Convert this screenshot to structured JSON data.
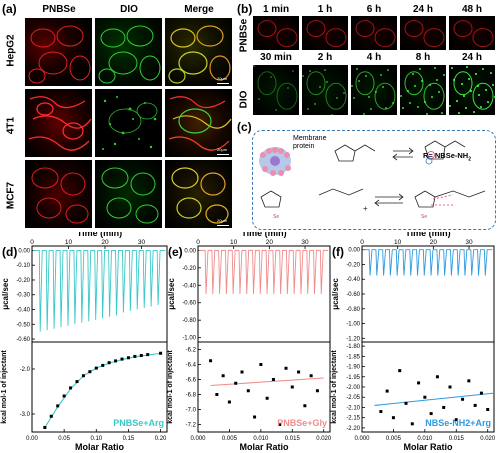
{
  "panel_a": {
    "label": "(a)",
    "columns": [
      "PNBSe",
      "DIO",
      "Merge"
    ],
    "rows": [
      "HepG2",
      "4T1",
      "MCF7"
    ],
    "scale_text": "20μm"
  },
  "panel_b": {
    "label": "(b)",
    "row1_label": "PNBSe",
    "row1_times": [
      "1 min",
      "1 h",
      "6 h",
      "24 h",
      "48 h"
    ],
    "row2_label": "DIO",
    "row2_times": [
      "30 min",
      "2 h",
      "4 h",
      "8 h",
      "24 h"
    ]
  },
  "panel_c": {
    "label": "(c)",
    "membrane_text": "Membrane protein",
    "r_definition": "R= NBSe-NH",
    "r_subscript": "2"
  },
  "colors": {
    "cyan": "#3cc8c8",
    "pink": "#f08c8c",
    "blue": "#2e9ae0",
    "dash_border": "#3b78b8"
  },
  "chart_data": [
    {
      "label": "(d)",
      "type": "line",
      "top": {
        "xlabel": "Time (min)",
        "ylabel": "μcal/sec",
        "xticks": [
          0,
          10,
          20,
          30
        ],
        "xlim": [
          0,
          37
        ],
        "yticks": [
          "0.00",
          "-0.10",
          "-0.20",
          "-0.30",
          "-0.40",
          "-0.50",
          "-0.60"
        ],
        "ylim": [
          -0.62,
          0.03
        ],
        "injections": 18,
        "peak_depths": [
          -0.55,
          -0.54,
          -0.53,
          -0.52,
          -0.51,
          -0.5,
          -0.49,
          -0.48,
          -0.47,
          -0.46,
          -0.45,
          -0.44,
          -0.42,
          -0.41,
          -0.4,
          -0.39,
          -0.38,
          -0.37
        ]
      },
      "bottom": {
        "xlabel": "Molar Ratio",
        "ylabel": "kcal mol-1 of injectant",
        "xticks": [
          "0.00",
          "0.05",
          "0.10",
          "0.15",
          "0.20"
        ],
        "xlim": [
          0,
          0.21
        ],
        "yticks": [
          "-2.0",
          "-3.0"
        ],
        "ylim": [
          -3.4,
          -1.4
        ],
        "points_x": [
          0.02,
          0.03,
          0.04,
          0.05,
          0.06,
          0.07,
          0.08,
          0.09,
          0.1,
          0.11,
          0.12,
          0.13,
          0.14,
          0.15,
          0.16,
          0.17,
          0.18,
          0.2
        ],
        "points_y": [
          -3.3,
          -3.05,
          -2.82,
          -2.6,
          -2.42,
          -2.28,
          -2.15,
          -2.06,
          -1.98,
          -1.92,
          -1.86,
          -1.82,
          -1.78,
          -1.75,
          -1.72,
          -1.7,
          -1.68,
          -1.65
        ],
        "fit_x": [
          0.02,
          0.04,
          0.06,
          0.08,
          0.1,
          0.12,
          0.14,
          0.16,
          0.18,
          0.2
        ],
        "fit_y": [
          -3.3,
          -2.84,
          -2.44,
          -2.15,
          -1.98,
          -1.87,
          -1.79,
          -1.73,
          -1.69,
          -1.65
        ],
        "legend": "PNBSe+Arg"
      },
      "color_key": "cyan"
    },
    {
      "label": "(e)",
      "type": "line",
      "top": {
        "xlabel": "Time (min)",
        "ylabel": "μcal/sec",
        "xticks": [
          0,
          10,
          20,
          30
        ],
        "xlim": [
          0,
          37
        ],
        "yticks": [
          "0.00",
          "-0.20",
          "-0.40",
          "-0.60",
          "-0.80",
          "-1.00"
        ],
        "ylim": [
          -1.05,
          0.05
        ],
        "injections": 18,
        "peak_depths": [
          -0.5,
          -0.5,
          -0.5,
          -0.5,
          -0.5,
          -0.5,
          -0.5,
          -0.5,
          -0.5,
          -0.5,
          -0.5,
          -0.5,
          -0.5,
          -0.5,
          -0.5,
          -0.5,
          -0.5,
          -0.5
        ]
      },
      "bottom": {
        "xlabel": "Molar Ratio",
        "ylabel": "kcal mol-1 of injectant",
        "xticks": [
          "0.000",
          "0.005",
          "0.010",
          "0.015",
          "0.020"
        ],
        "xlim": [
          0,
          0.021
        ],
        "yticks": [
          "-6.2",
          "-6.4",
          "-6.6",
          "-6.8",
          "-7.0",
          "-7.2"
        ],
        "ylim": [
          -7.3,
          -6.1
        ],
        "points_x": [
          0.002,
          0.003,
          0.004,
          0.005,
          0.006,
          0.007,
          0.008,
          0.009,
          0.01,
          0.011,
          0.012,
          0.013,
          0.014,
          0.015,
          0.016,
          0.017,
          0.018,
          0.019
        ],
        "points_y": [
          -6.35,
          -6.8,
          -6.55,
          -6.9,
          -6.65,
          -6.5,
          -6.75,
          -7.1,
          -6.4,
          -6.85,
          -6.6,
          -7.2,
          -6.45,
          -6.7,
          -6.5,
          -6.95,
          -6.55,
          -6.75
        ],
        "fit_x": [
          0.002,
          0.02
        ],
        "fit_y": [
          -6.68,
          -6.58
        ],
        "legend": "PNBSe+Gly"
      },
      "color_key": "pink"
    },
    {
      "label": "(f)",
      "type": "line",
      "top": {
        "xlabel": "Time (min)",
        "ylabel": "μcal/sec",
        "xticks": [
          0,
          10,
          20,
          30
        ],
        "xlim": [
          0,
          37
        ],
        "yticks": [
          "0.00",
          "-0.20",
          "-0.40",
          "-0.60",
          "-0.80",
          "-1.00",
          "-1.20"
        ],
        "ylim": [
          -1.25,
          0.05
        ],
        "injections": 18,
        "peak_depths": [
          -0.35,
          -0.35,
          -0.35,
          -0.35,
          -0.35,
          -0.35,
          -0.35,
          -0.35,
          -0.35,
          -0.35,
          -0.35,
          -0.35,
          -0.35,
          -0.35,
          -0.35,
          -0.35,
          -0.35,
          -0.35
        ]
      },
      "bottom": {
        "xlabel": "Molar Ratio",
        "ylabel": "kcal mol-1 of injectant",
        "xticks": [
          "0.000",
          "0.005",
          "0.010",
          "0.015",
          "0.020"
        ],
        "xlim": [
          0,
          0.021
        ],
        "yticks": [
          "-1.80",
          "-1.85",
          "-1.90",
          "-1.95",
          "-2.00",
          "-2.05",
          "-2.10",
          "-2.15",
          "-2.20"
        ],
        "ylim": [
          -2.22,
          -1.78
        ],
        "points_x": [
          0.003,
          0.004,
          0.005,
          0.006,
          0.007,
          0.008,
          0.009,
          0.01,
          0.011,
          0.012,
          0.013,
          0.014,
          0.015,
          0.016,
          0.017,
          0.018,
          0.019,
          0.02
        ],
        "points_y": [
          -2.12,
          -2.02,
          -2.15,
          -1.92,
          -2.08,
          -2.18,
          -1.98,
          -2.05,
          -2.13,
          -1.95,
          -2.1,
          -2.0,
          -2.16,
          -2.06,
          -1.97,
          -2.09,
          -2.03,
          -2.11
        ],
        "fit_x": [
          0.002,
          0.021
        ],
        "fit_y": [
          -2.09,
          -2.03
        ],
        "legend": "NBSe-NH2+Arg"
      },
      "color_key": "blue"
    }
  ]
}
